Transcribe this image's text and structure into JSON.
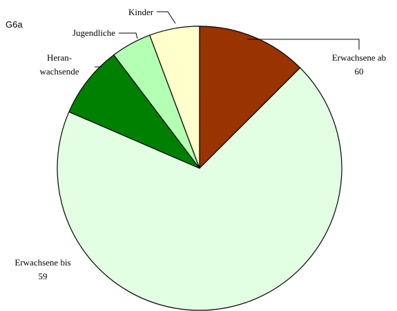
{
  "figure_id": "G6a",
  "chart_data": {
    "type": "pie",
    "start_angle_deg": 0,
    "direction": "clockwise",
    "slices": [
      {
        "label_lines": [
          "Erwachsene ab",
          "60"
        ],
        "value": 12.5,
        "color": "#993300"
      },
      {
        "label_lines": [
          "Erwachsene bis",
          "59"
        ],
        "value": 69.0,
        "color": "#e3ffe3"
      },
      {
        "label_lines": [
          "Heran-",
          "wachsende"
        ],
        "value": 8.2,
        "color": "#008000"
      },
      {
        "label_lines": [
          "Jugendliche"
        ],
        "value": 4.6,
        "color": "#b3ffb3"
      },
      {
        "label_lines": [
          "Kinder"
        ],
        "value": 5.7,
        "color": "#ffffcc"
      }
    ]
  }
}
